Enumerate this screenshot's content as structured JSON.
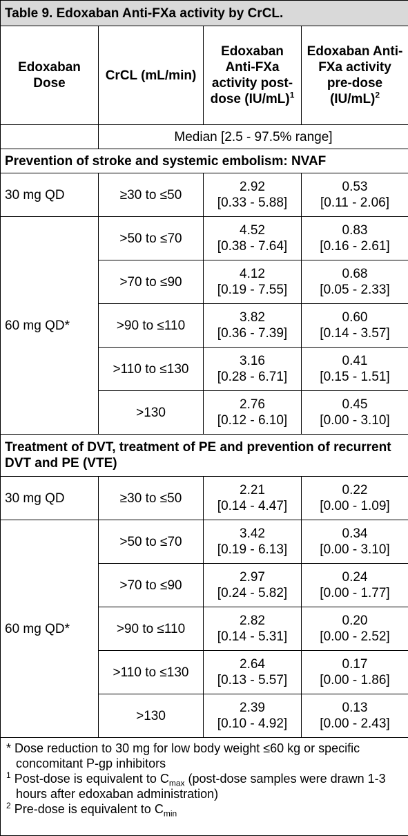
{
  "title": "Table 9. Edoxaban Anti-FXa activity by CrCL.",
  "header": [
    {
      "text": "Edoxaban Dose"
    },
    {
      "text": "CrCL (mL/min)"
    },
    {
      "text": "Edoxaban Anti-FXa activity post-dose (IU/mL)",
      "sup": "1"
    },
    {
      "text": "Edoxaban Anti-FXa activity pre-dose (IU/mL)",
      "sup": "2"
    }
  ],
  "subheader": "Median [2.5 - 97.5% range]",
  "sections": [
    {
      "title": "Prevention of stroke and systemic embolism: NVAF",
      "groups": [
        {
          "dose": "30 mg QD",
          "rows": [
            {
              "crcl": "≥30 to ≤50",
              "post": "2.92",
              "post_range": "[0.33 - 5.88]",
              "pre": "0.53",
              "pre_range": "[0.11 - 2.06]"
            }
          ]
        },
        {
          "dose": "60 mg QD*",
          "rows": [
            {
              "crcl": ">50 to ≤70",
              "post": "4.52",
              "post_range": "[0.38 - 7.64]",
              "pre": "0.83",
              "pre_range": "[0.16 - 2.61]"
            },
            {
              "crcl": ">70 to ≤90",
              "post": "4.12",
              "post_range": "[0.19 - 7.55]",
              "pre": "0.68",
              "pre_range": "[0.05 - 2.33]"
            },
            {
              "crcl": ">90 to ≤110",
              "post": "3.82",
              "post_range": "[0.36 - 7.39]",
              "pre": "0.60",
              "pre_range": "[0.14 - 3.57]"
            },
            {
              "crcl": ">110 to ≤130",
              "post": "3.16",
              "post_range": "[0.28 - 6.71]",
              "pre": "0.41",
              "pre_range": "[0.15 - 1.51]"
            },
            {
              "crcl": ">130",
              "post": "2.76",
              "post_range": "[0.12 - 6.10]",
              "pre": "0.45",
              "pre_range": "[0.00 - 3.10]"
            }
          ]
        }
      ]
    },
    {
      "title": "Treatment of DVT, treatment of PE and prevention of recurrent DVT and PE (VTE)",
      "groups": [
        {
          "dose": "30 mg QD",
          "rows": [
            {
              "crcl": "≥30 to ≤50",
              "post": "2.21",
              "post_range": "[0.14 - 4.47]",
              "pre": "0.22",
              "pre_range": "[0.00 - 1.09]"
            }
          ]
        },
        {
          "dose": "60 mg QD*",
          "rows": [
            {
              "crcl": ">50 to ≤70",
              "post": "3.42",
              "post_range": "[0.19 - 6.13]",
              "pre": "0.34",
              "pre_range": "[0.00 - 3.10]"
            },
            {
              "crcl": ">70 to ≤90",
              "post": "2.97",
              "post_range": "[0.24 - 5.82]",
              "pre": "0.24",
              "pre_range": "[0.00 - 1.77]"
            },
            {
              "crcl": ">90 to ≤110",
              "post": "2.82",
              "post_range": "[0.14 - 5.31]",
              "pre": "0.20",
              "pre_range": "[0.00 - 2.52]"
            },
            {
              "crcl": ">110 to ≤130",
              "post": "2.64",
              "post_range": "[0.13 - 5.57]",
              "pre": "0.17",
              "pre_range": "[0.00 - 1.86]"
            },
            {
              "crcl": ">130",
              "post": "2.39",
              "post_range": "[0.10 - 4.92]",
              "pre": "0.13",
              "pre_range": "[0.00 - 2.43]"
            }
          ]
        }
      ]
    }
  ],
  "footnotes": [
    {
      "mark": "*",
      "text": "Dose reduction to 30 mg for low body weight ≤60 kg or specific concomitant P-gp inhibitors"
    },
    {
      "mark": "1",
      "text": "Post-dose is equivalent to C",
      "sub": "max",
      "after": " (post-dose samples were drawn 1-3 hours after edoxaban administration)"
    },
    {
      "mark": "2",
      "text": "Pre-dose is equivalent to C",
      "sub": "min"
    }
  ]
}
